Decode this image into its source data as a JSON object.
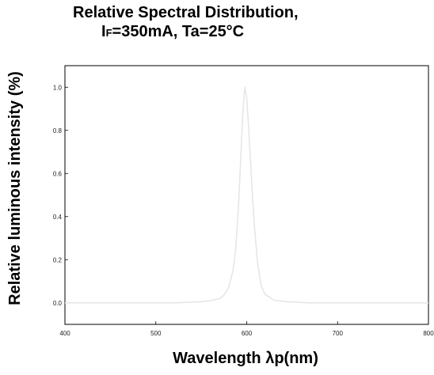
{
  "chart_data": {
    "type": "line",
    "title": "Relative Spectral Distribution,",
    "subtitle_prefix": "I",
    "subtitle_sub": "F",
    "subtitle_rest": "=350mA, Ta=25°C",
    "xlabel": "Wavelength λp(nm)",
    "ylabel": "Relative luminous intensity (%)",
    "xlim": [
      400,
      800
    ],
    "ylim": [
      -0.1,
      1.1
    ],
    "xticks": [
      "400",
      "500",
      "600",
      "700",
      "800"
    ],
    "yticks": [
      "0.0",
      "0.2",
      "0.4",
      "0.6",
      "0.8",
      "1.0"
    ],
    "grid": false,
    "series": [
      {
        "color": "#e6e6e6",
        "x": [
          400,
          520,
          550,
          560,
          570,
          575,
          580,
          585,
          588,
          591,
          594,
          596,
          598,
          600,
          602,
          605,
          608,
          612,
          616,
          620,
          630,
          645,
          670,
          700,
          800
        ],
        "y": [
          0.0,
          0.0,
          0.005,
          0.01,
          0.02,
          0.035,
          0.07,
          0.15,
          0.25,
          0.45,
          0.72,
          0.9,
          1.0,
          0.95,
          0.82,
          0.6,
          0.38,
          0.18,
          0.08,
          0.04,
          0.012,
          0.005,
          0.0,
          0.0,
          0.0
        ]
      }
    ]
  }
}
